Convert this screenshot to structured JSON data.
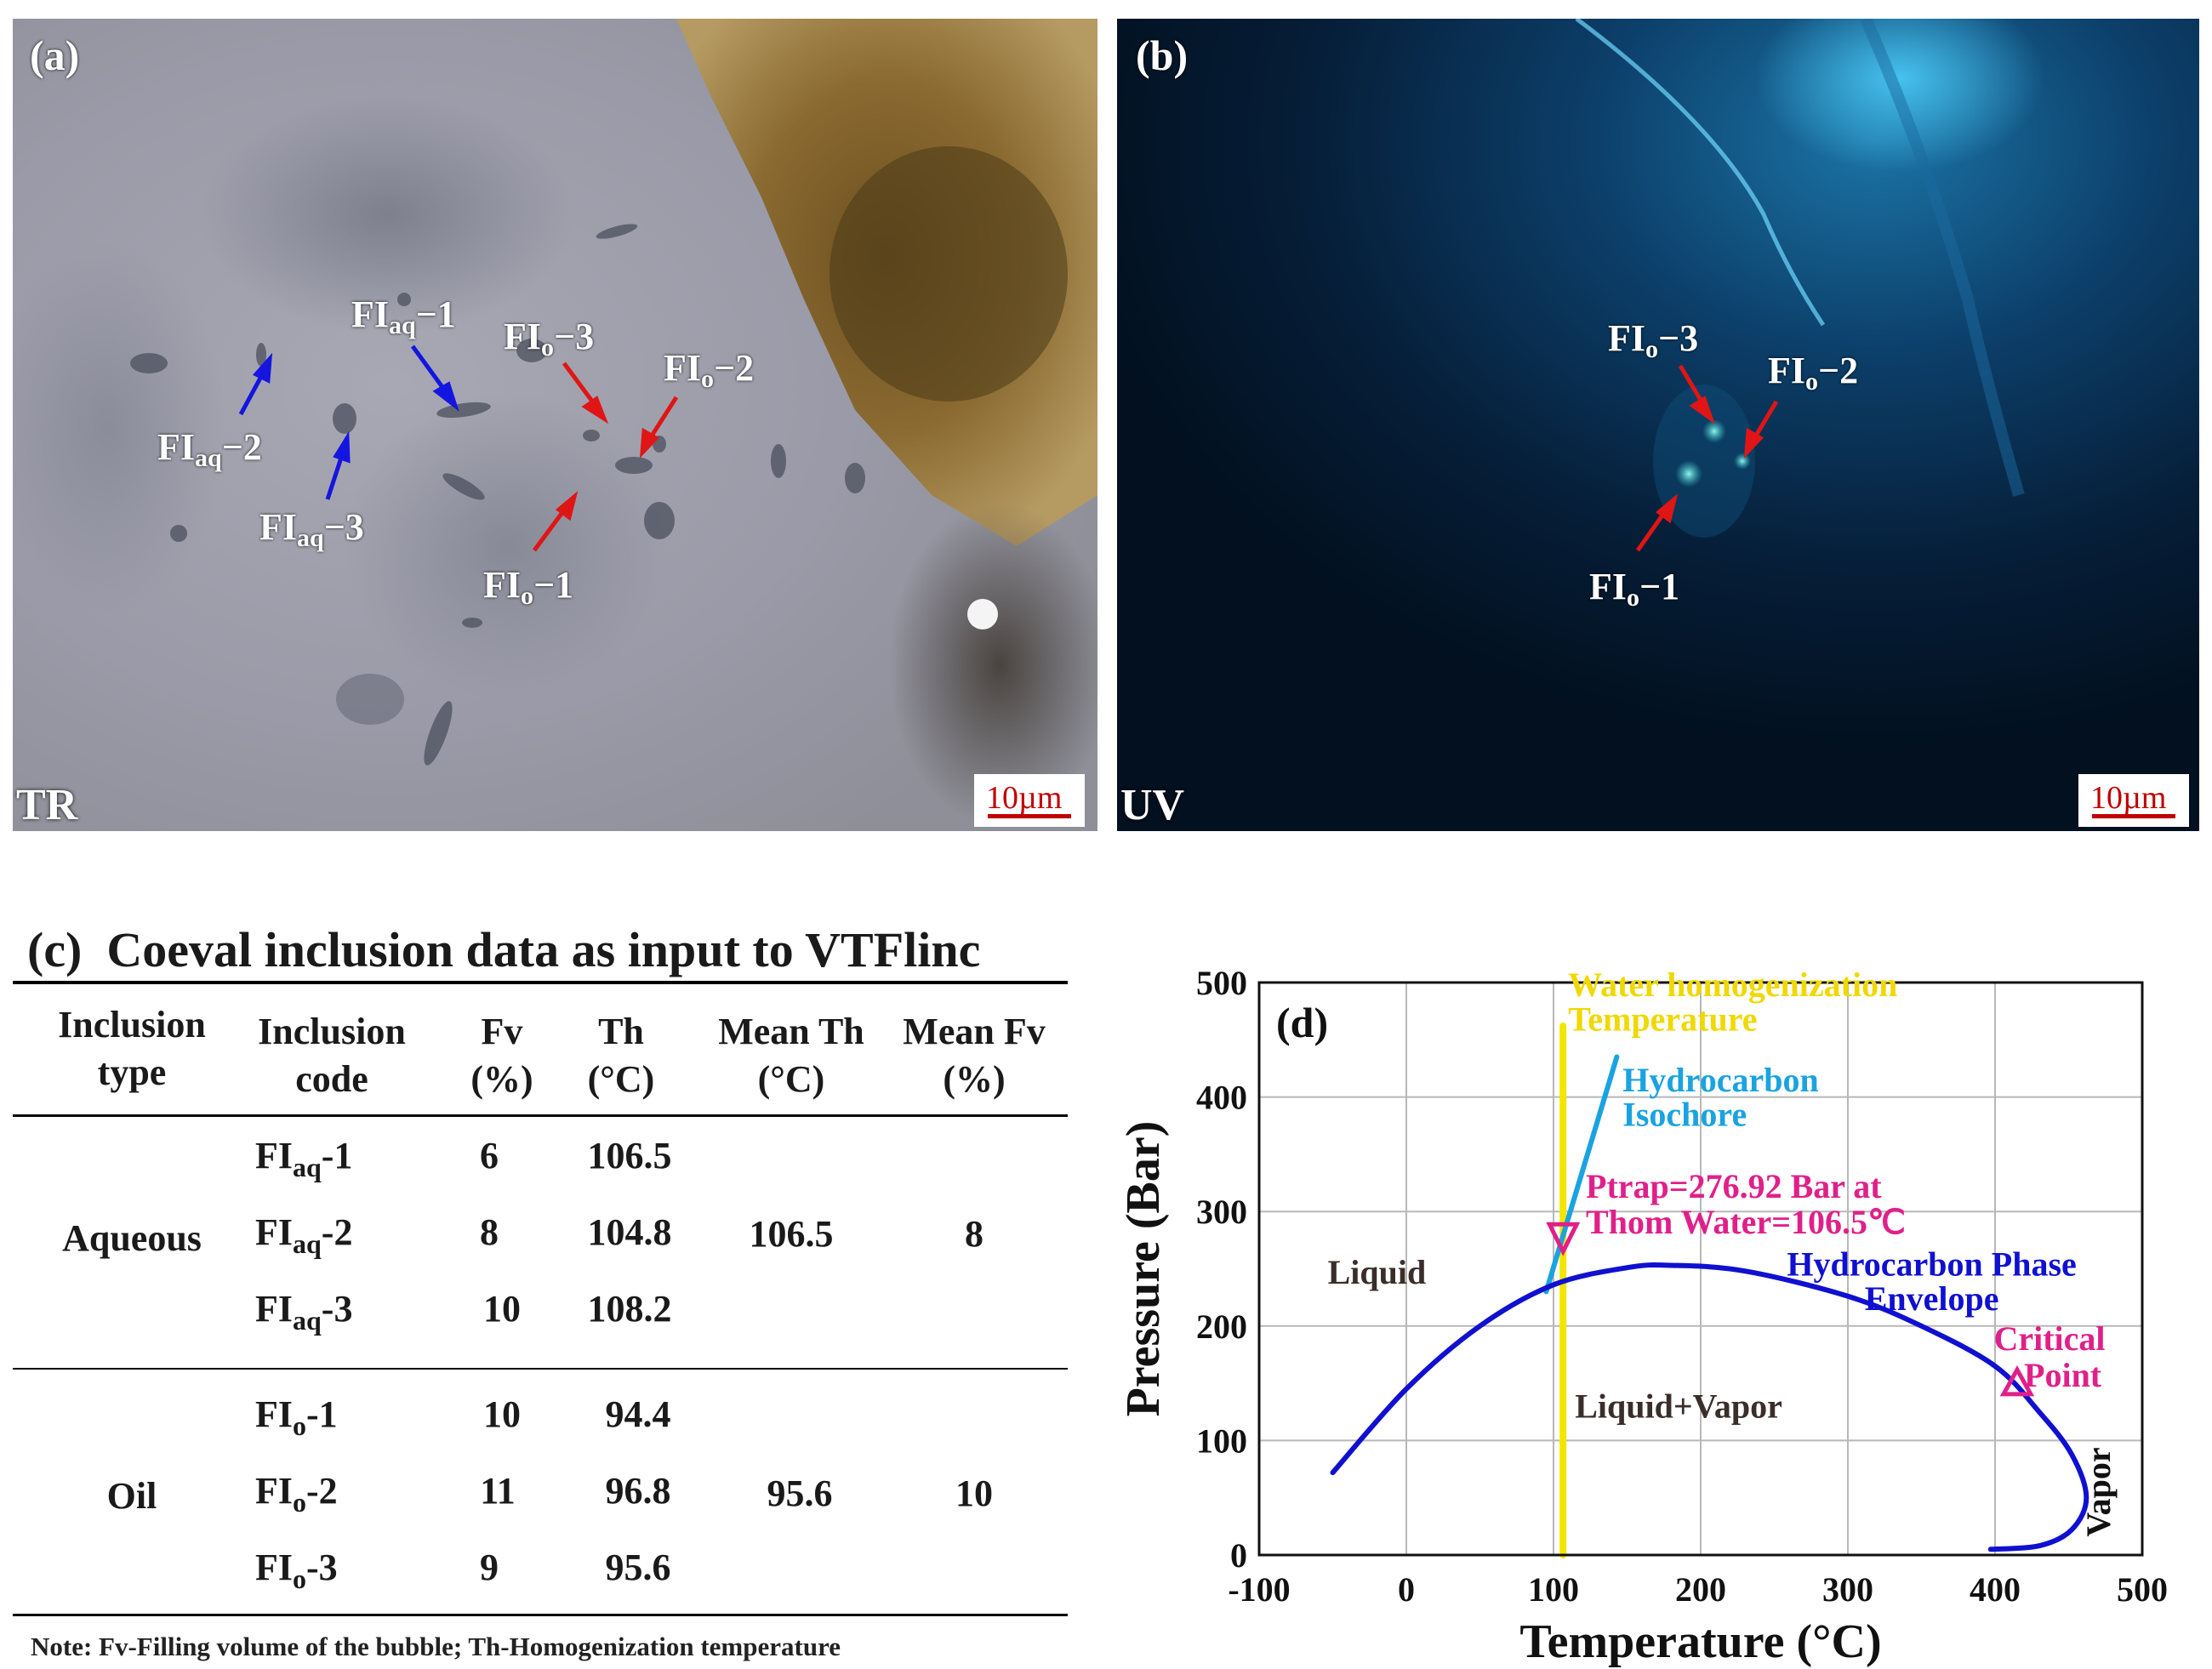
{
  "panel_a": {
    "label": "(a)",
    "mode": "TR",
    "scale": "10µm",
    "annotations": [
      {
        "base": "FI",
        "sub": "aq",
        "suffix": "−1"
      },
      {
        "base": "FI",
        "sub": "aq",
        "suffix": "−2"
      },
      {
        "base": "FI",
        "sub": "aq",
        "suffix": "−3"
      },
      {
        "base": "FI",
        "sub": "o",
        "suffix": "−1"
      },
      {
        "base": "FI",
        "sub": "o",
        "suffix": "−2"
      },
      {
        "base": "FI",
        "sub": "o",
        "suffix": "−3"
      }
    ]
  },
  "panel_b": {
    "label": "(b)",
    "mode": "UV",
    "scale": "10µm",
    "annotations": [
      {
        "base": "FI",
        "sub": "o",
        "suffix": "−3"
      },
      {
        "base": "FI",
        "sub": "o",
        "suffix": "−2"
      },
      {
        "base": "FI",
        "sub": "o",
        "suffix": "−1"
      }
    ]
  },
  "panel_c": {
    "label": "(c)",
    "title": "Coeval inclusion data as input to VTFlinc",
    "headers": [
      "Inclusion type",
      "Inclusion code",
      "Fv (%)",
      "Th (°C)",
      "Mean Th (°C)",
      "Mean Fv (%)"
    ],
    "groups": [
      {
        "type": "Aqueous",
        "mean_th": "106.5",
        "mean_fv": "8",
        "rows": [
          {
            "base": "FI",
            "sub": "aq",
            "suffix": "-1",
            "fv": "6",
            "th": "106.5"
          },
          {
            "base": "FI",
            "sub": "aq",
            "suffix": "-2",
            "fv": "8",
            "th": "104.8"
          },
          {
            "base": "FI",
            "sub": "aq",
            "suffix": "-3",
            "fv": "10",
            "th": "108.2"
          }
        ]
      },
      {
        "type": "Oil",
        "mean_th": "95.6",
        "mean_fv": "10",
        "rows": [
          {
            "base": "FI",
            "sub": "o",
            "suffix": "-1",
            "fv": "10",
            "th": "94.4"
          },
          {
            "base": "FI",
            "sub": "o",
            "suffix": "-2",
            "fv": "11",
            "th": "96.8"
          },
          {
            "base": "FI",
            "sub": "o",
            "suffix": "-3",
            "fv": "9",
            "th": "95.6"
          }
        ]
      }
    ],
    "note": "Note: Fv-Filling volume of the bubble; Th-Homogenization temperature"
  },
  "chart_data": {
    "type": "line",
    "panel_label": "(d)",
    "xlabel": "Temperature (°C)",
    "ylabel": "Pressure (Bar)",
    "xlim": [
      -100,
      500
    ],
    "ylim": [
      0,
      500
    ],
    "xticks": [
      -100,
      0,
      100,
      200,
      300,
      400,
      500
    ],
    "yticks": [
      0,
      100,
      200,
      300,
      400,
      500
    ],
    "grid": true,
    "series": [
      {
        "name": "Hydrocarbon Phase Envelope",
        "color": "#1010d0",
        "points": [
          [
            -50,
            72
          ],
          [
            0,
            145
          ],
          [
            50,
            200
          ],
          [
            100,
            236
          ],
          [
            150,
            251
          ],
          [
            180,
            253
          ],
          [
            230,
            248
          ],
          [
            300,
            226
          ],
          [
            350,
            200
          ],
          [
            400,
            165
          ],
          [
            430,
            125
          ],
          [
            452,
            88
          ],
          [
            462,
            50
          ],
          [
            452,
            22
          ],
          [
            430,
            8
          ],
          [
            397,
            5
          ]
        ]
      },
      {
        "name": "Hydrocarbon Isochore",
        "color": "#1aa3e0",
        "points": [
          [
            95,
            230
          ],
          [
            143,
            435
          ]
        ]
      },
      {
        "name": "Water homogenization Temperature",
        "color": "#f2e600",
        "points": [
          [
            106.5,
            0
          ],
          [
            106.5,
            462
          ]
        ]
      }
    ],
    "markers": [
      {
        "name": "Ptrap",
        "x": 106.5,
        "y": 276.92,
        "color": "#e0208a",
        "shape": "triangle-down"
      },
      {
        "name": "Critical Point",
        "x": 415,
        "y": 150,
        "color": "#e0208a",
        "shape": "triangle-up"
      }
    ],
    "annotations": {
      "water_line1": "Water homogenization",
      "water_line2": "Temperature",
      "isochore_line1": "Hydrocarbon",
      "isochore_line2": "Isochore",
      "ptrap_line1": "Ptrap=276.92 Bar at",
      "ptrap_line2": "Thom Water=106.5℃",
      "envelope_line1": "Hydrocarbon Phase",
      "envelope_line2": "Envelope",
      "critical_line1": "Critical",
      "critical_line2": "Point",
      "liquid": "Liquid",
      "liquid_vapor": "Liquid+Vapor",
      "vapor": "Vapor"
    }
  }
}
